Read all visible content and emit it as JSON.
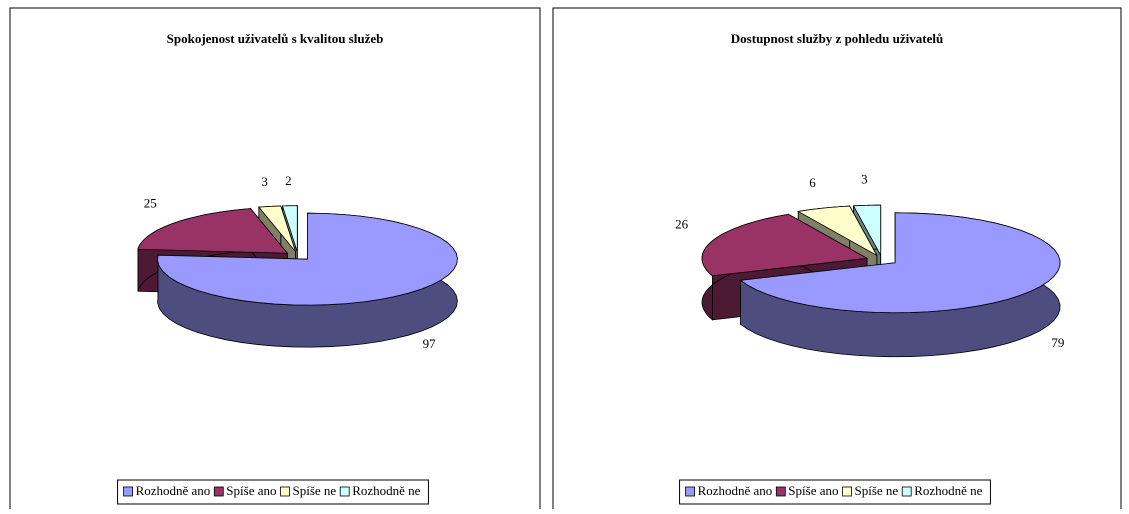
{
  "chart_data": [
    {
      "type": "pie",
      "title": "Spokojenost uživatelů s kvalitou služeb",
      "categories": [
        "Rozhodně ano",
        "Spíše ano",
        "Spíše ne",
        "Rozhodně ne"
      ],
      "values": [
        97,
        25,
        3,
        2
      ],
      "colors": [
        "#9999ff",
        "#993366",
        "#ffffcc",
        "#ccffff"
      ]
    },
    {
      "type": "pie",
      "title": "Dostupnost služby z pohledu uživatelů",
      "categories": [
        "Rozhodně ano",
        "Spíše ano",
        "Spíše ne",
        "Rozhodně ne"
      ],
      "values": [
        79,
        26,
        6,
        3
      ],
      "colors": [
        "#9999ff",
        "#993366",
        "#ffffcc",
        "#ccffff"
      ]
    }
  ]
}
